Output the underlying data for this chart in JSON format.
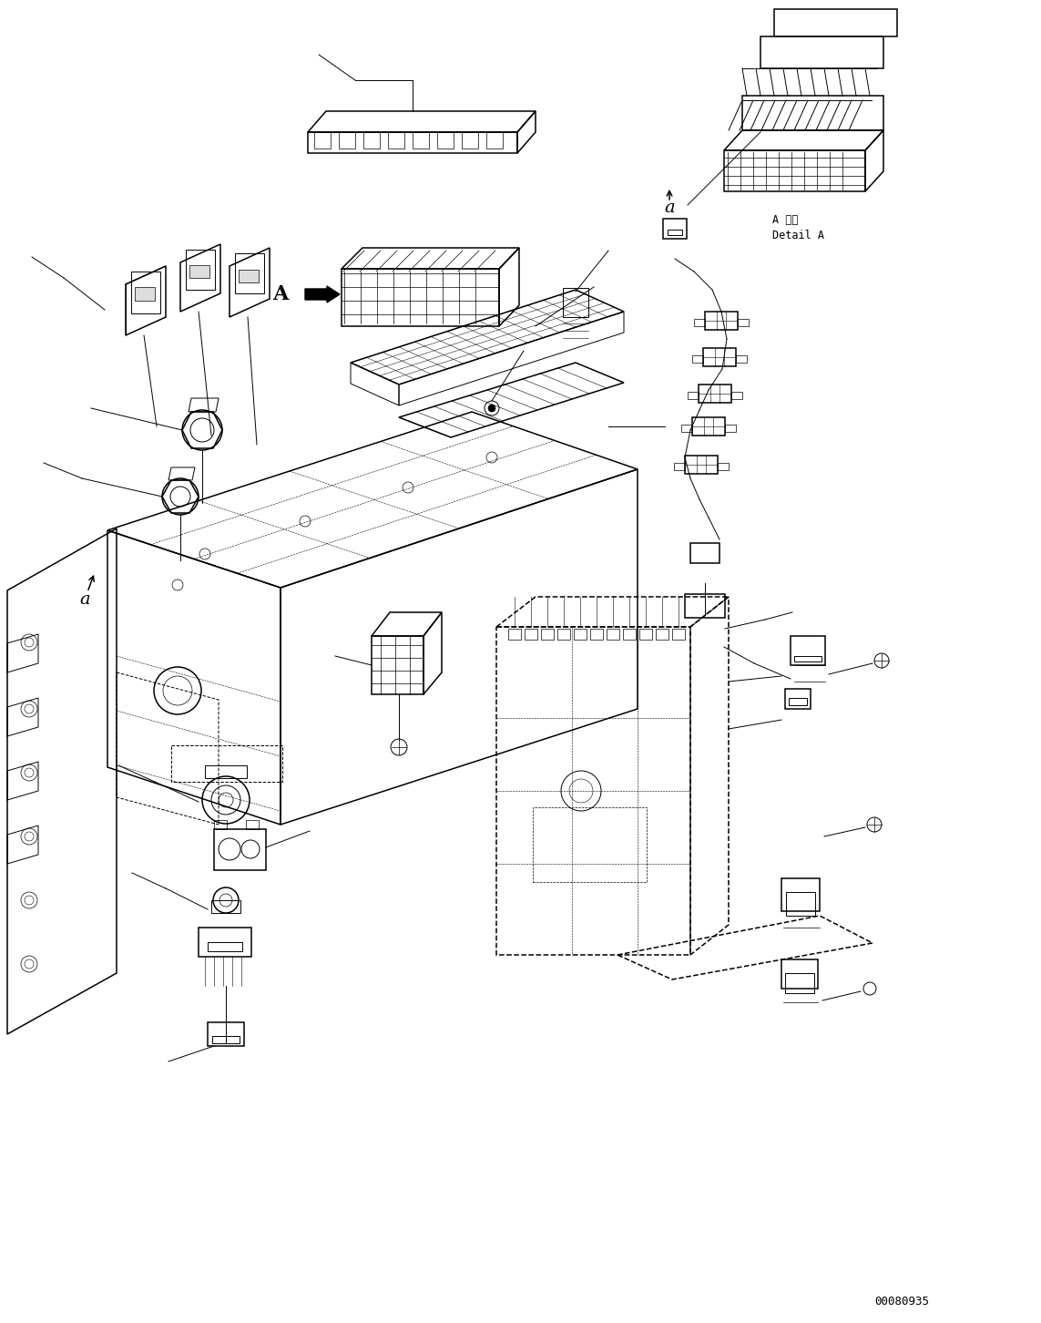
{
  "background_color": "#ffffff",
  "line_color": "#000000",
  "part_number": "00080935",
  "label_a": "A",
  "label_a_small": "a",
  "detail_text_1": "A 詳細",
  "detail_text_2": "Detail A",
  "fig_width": 11.43,
  "fig_height": 14.52,
  "dpi": 100
}
